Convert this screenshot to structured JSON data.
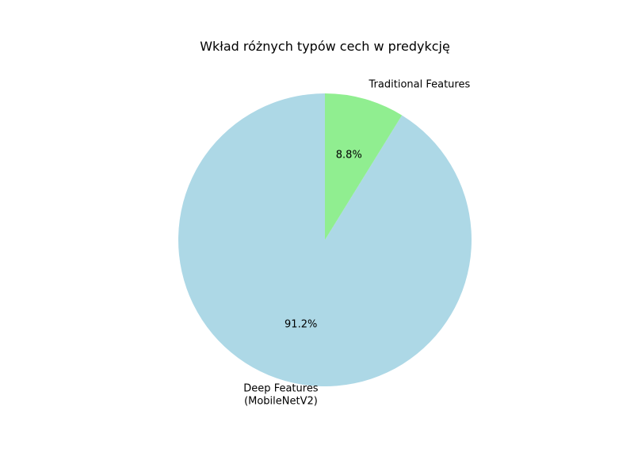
{
  "chart_data": {
    "type": "pie",
    "title": "Wkład różnych typów cech w predykcję",
    "start_angle_deg": 90,
    "direction": "counterclockwise",
    "slices": [
      {
        "label": "Deep Features (MobileNetV2)",
        "label_lines": [
          "Deep Features",
          "(MobileNetV2)"
        ],
        "value": 91.2,
        "pct_text": "91.2%",
        "color": "#add8e6"
      },
      {
        "label": "Traditional Features",
        "label_lines": [
          "Traditional Features"
        ],
        "value": 8.8,
        "pct_text": "8.8%",
        "color": "#90ee90"
      }
    ],
    "legend": "none"
  }
}
